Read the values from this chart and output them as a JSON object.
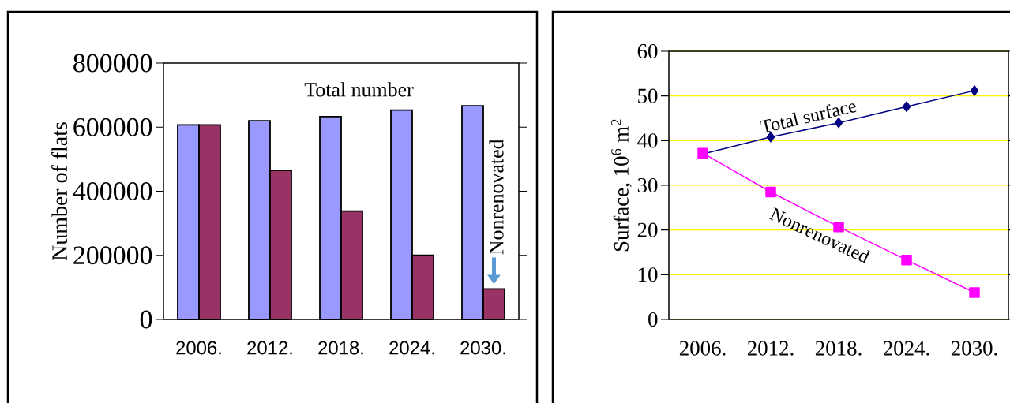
{
  "chart_data": [
    {
      "type": "bar",
      "categories": [
        "2006.",
        "2012.",
        "2018.",
        "2024.",
        "2030."
      ],
      "ylabel": "Number of flats",
      "ylim": [
        0,
        800000
      ],
      "yticks": [
        0,
        200000,
        400000,
        600000,
        800000
      ],
      "series": [
        {
          "name": "Total number",
          "color": "#9999ff",
          "values": [
            607000,
            620000,
            633000,
            653000,
            667000
          ]
        },
        {
          "name": "Nonrenovated",
          "color": "#993366",
          "values": [
            607000,
            465000,
            338000,
            200000,
            95000
          ]
        }
      ]
    },
    {
      "type": "line",
      "categories": [
        "2006.",
        "2012.",
        "2018.",
        "2024.",
        "2030."
      ],
      "ylabel": "Surface, 10$^{6}$ m$^{2}$",
      "ylim": [
        0,
        60
      ],
      "yticks": [
        0,
        10,
        20,
        30,
        40,
        50,
        60
      ],
      "grid": "y",
      "series": [
        {
          "name": "Total surface",
          "color": "#000080",
          "marker": "diamond",
          "values": [
            37,
            40.8,
            44,
            47.6,
            51.2
          ]
        },
        {
          "name": "Nonrenovated",
          "color": "#ff00ff",
          "marker": "square",
          "values": [
            37.2,
            28.5,
            20.7,
            13.3,
            6
          ]
        }
      ]
    }
  ]
}
